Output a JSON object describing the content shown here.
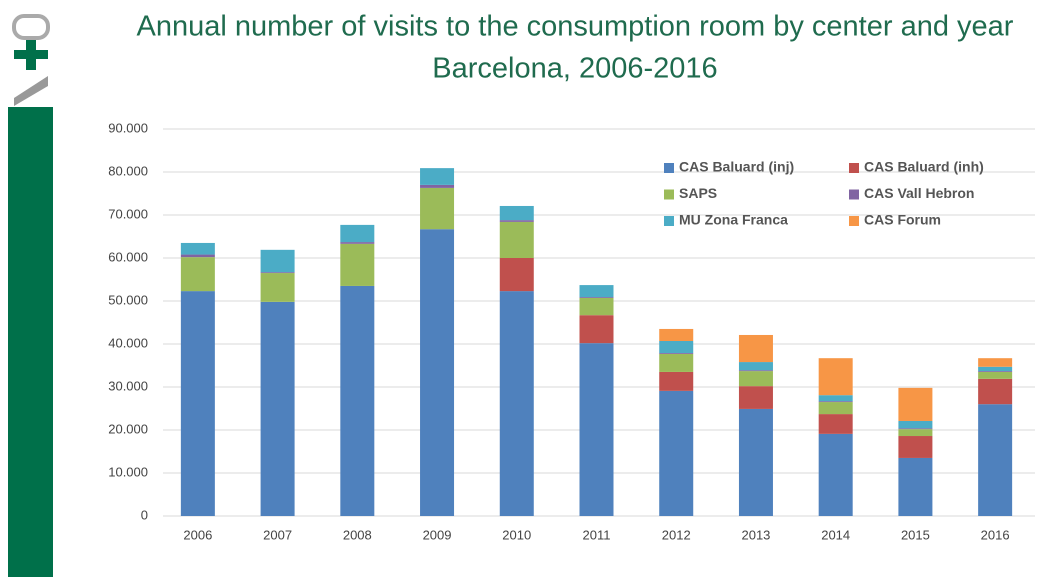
{
  "chart_data": {
    "type": "stacked_bar",
    "title": "Annual number of visits to the consumption room by center and year",
    "subtitle": "Barcelona, 2006-2016",
    "categories": [
      "2006",
      "2007",
      "2008",
      "2009",
      "2010",
      "2011",
      "2012",
      "2013",
      "2014",
      "2015",
      "2016"
    ],
    "series": [
      {
        "name": "CAS Baluard (inj)",
        "color": "#4f81bd",
        "values": [
          52300,
          49800,
          53500,
          66700,
          52300,
          40200,
          29100,
          24900,
          19100,
          13500,
          26000
        ]
      },
      {
        "name": "CAS Baluard (inh)",
        "color": "#c0504d",
        "values": [
          0,
          0,
          0,
          0,
          7700,
          6500,
          4400,
          5300,
          4600,
          5100,
          5900
        ]
      },
      {
        "name": "SAPS",
        "color": "#9bbb59",
        "values": [
          7900,
          6700,
          9800,
          9600,
          8400,
          4000,
          4200,
          3500,
          2800,
          1600,
          1600
        ]
      },
      {
        "name": "CAS Vall Hebron",
        "color": "#8064a2",
        "values": [
          600,
          200,
          400,
          700,
          400,
          200,
          200,
          200,
          200,
          200,
          200
        ]
      },
      {
        "name": "MU Zona Franca",
        "color": "#4bacc6",
        "values": [
          2700,
          5200,
          4000,
          3900,
          3300,
          2800,
          2800,
          1900,
          1400,
          1700,
          1000
        ]
      },
      {
        "name": "CAS Forum",
        "color": "#f79646",
        "values": [
          0,
          0,
          0,
          0,
          0,
          0,
          2800,
          6300,
          8600,
          7700,
          2000
        ]
      }
    ],
    "ylim": [
      0,
      90000
    ],
    "yticks": [
      0,
      {
        "value": 10000,
        "label": "10.000"
      },
      {
        "value": 20000,
        "label": "20.000"
      },
      {
        "value": 30000,
        "label": "30.000"
      },
      {
        "value": 40000,
        "label": "40.000"
      },
      {
        "value": 50000,
        "label": "50.000"
      },
      {
        "value": 60000,
        "label": "60.000"
      },
      {
        "value": 70000,
        "label": "70.000"
      },
      {
        "value": 80000,
        "label": "80.000"
      },
      {
        "value": 90000,
        "label": "90.000"
      }
    ],
    "grid": true
  }
}
